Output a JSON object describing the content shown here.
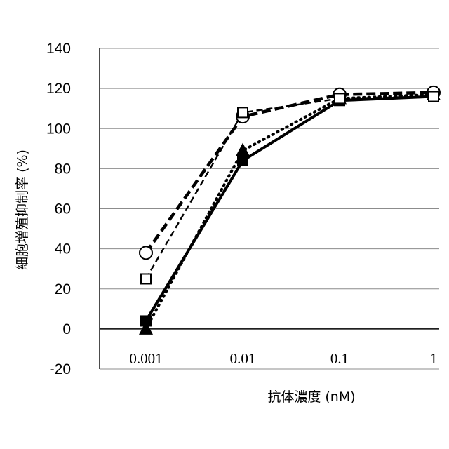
{
  "chart_data": {
    "type": "line",
    "title": "",
    "xlabel": "抗体濃度 (nM)",
    "ylabel": "細胞増殖抑制率 (%)",
    "categories": [
      "0.001",
      "0.01",
      "0.1",
      "1"
    ],
    "x_scale": "log",
    "ylim": [
      -20,
      140
    ],
    "yticks": [
      "140",
      "120",
      "100",
      "80",
      "60",
      "40",
      "20",
      "0",
      "-20"
    ],
    "grid": true,
    "legend": "none",
    "series": [
      {
        "values": [
          4,
          84,
          114,
          116
        ],
        "line": "solid",
        "marker": "filled-square",
        "color": "#000000"
      },
      {
        "values": [
          0,
          89,
          115,
          117
        ],
        "line": "dotted",
        "marker": "filled-triangle",
        "color": "#000000"
      },
      {
        "values": [
          38,
          106,
          117,
          118
        ],
        "line": "dashed-thick",
        "marker": "open-circle",
        "color": "#000000"
      },
      {
        "values": [
          25,
          108,
          115,
          116
        ],
        "line": "dashed-thin",
        "marker": "open-square",
        "color": "#000000"
      }
    ]
  }
}
